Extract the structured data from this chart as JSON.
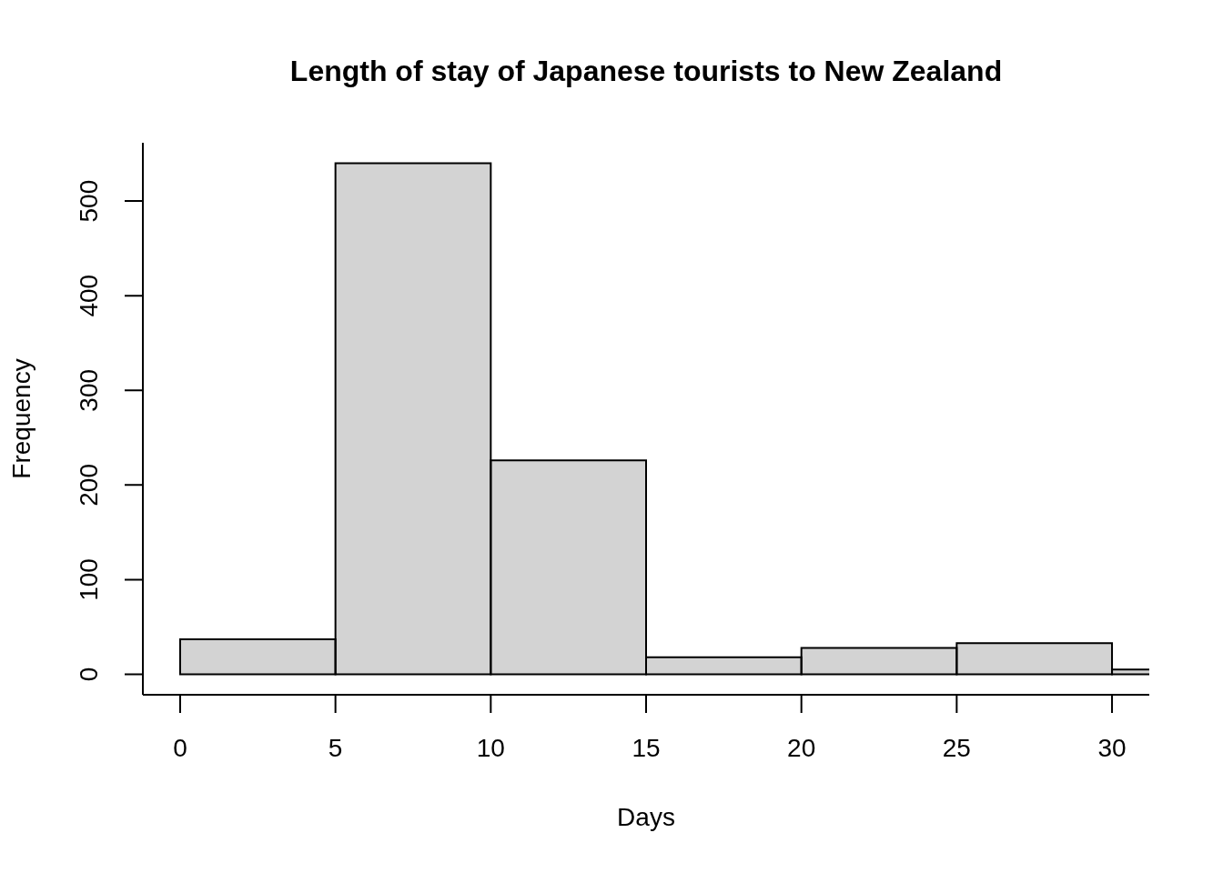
{
  "chart_data": {
    "type": "histogram",
    "title": "Length of stay of Japanese tourists to New Zealand",
    "xlabel": "Days",
    "ylabel": "Frequency",
    "bins": [
      0,
      5,
      10,
      15,
      20,
      25,
      30,
      35
    ],
    "values": [
      37,
      540,
      226,
      18,
      28,
      33,
      5
    ],
    "color": "#d3d3d3",
    "xlim": [
      -1.2,
      31.2
    ],
    "xticks": [
      0,
      5,
      10,
      15,
      20,
      25,
      30
    ],
    "ylim": [
      -21.6,
      561.6
    ],
    "yticks": [
      0,
      100,
      200,
      300,
      400,
      500
    ],
    "grid": false,
    "legend": false
  }
}
